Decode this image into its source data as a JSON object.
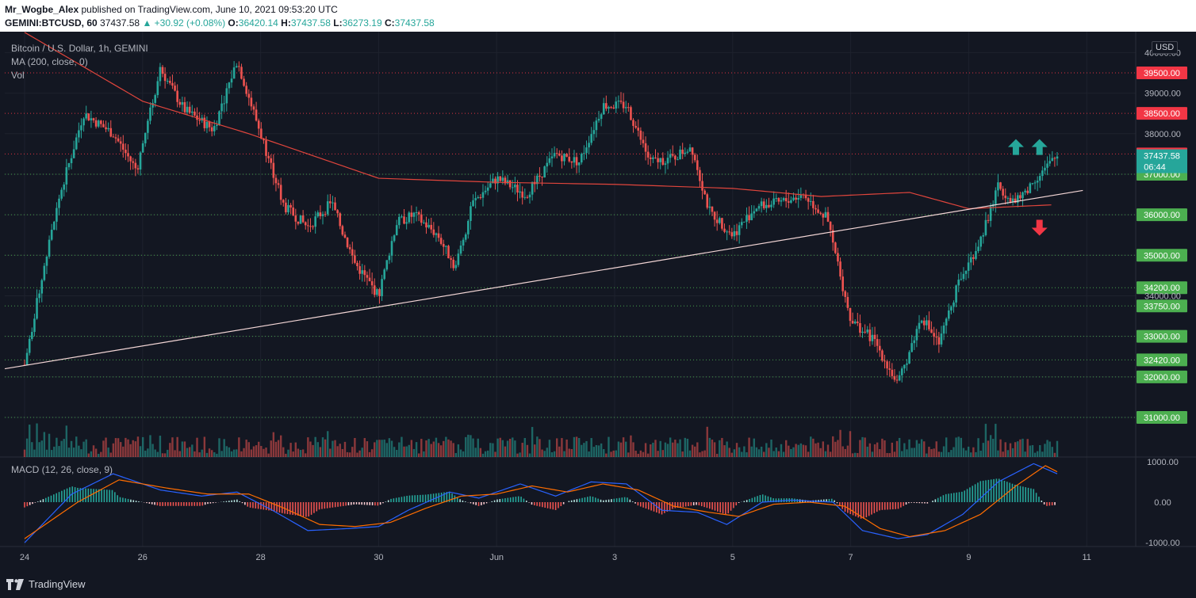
{
  "header": {
    "author": "Mr_Wogbe_Alex",
    "published_text": "published on TradingView.com, June 10, 2021 09:53:20 UTC",
    "symbol": "GEMINI:BTCUSD, 60",
    "price": "37437.58",
    "change": "+30.92 (+0.08%)",
    "o_label": "O:",
    "o": "36420.14",
    "h_label": "H:",
    "h": "37437.58",
    "l_label": "L:",
    "l": "36273.19",
    "c_label": "C:",
    "c": "37437.58"
  },
  "legend": {
    "title": "Bitcoin / U.S. Dollar, 1h, GEMINI",
    "ma": "MA (200, close, 0)",
    "vol": "Vol",
    "macd": "MACD (12, 26, close, 9)"
  },
  "currency": "USD",
  "footer": {
    "brand": "TradingView"
  },
  "colors": {
    "up": "#26a69a",
    "down": "#ef5350",
    "ma": "#e0453c",
    "trend": "#f3d6d6",
    "red_label": "#f23645",
    "green_label": "#4caf50",
    "macd": "#2962ff",
    "signal": "#ff6d00"
  },
  "chart_data": {
    "type": "candlestick",
    "x_ticks": [
      "24",
      "26",
      "28",
      "30",
      "Jun",
      "3",
      "5",
      "7",
      "9",
      "11"
    ],
    "price_levels": [
      {
        "value": "39500.00",
        "kind": "resistance"
      },
      {
        "value": "38500.00",
        "kind": "resistance"
      },
      {
        "value": "37500.00",
        "kind": "resistance"
      },
      {
        "value": "37000.00",
        "kind": "support"
      },
      {
        "value": "36000.00",
        "kind": "support"
      },
      {
        "value": "35000.00",
        "kind": "support"
      },
      {
        "value": "34200.00",
        "kind": "support"
      },
      {
        "value": "33750.00",
        "kind": "support"
      },
      {
        "value": "33000.00",
        "kind": "support"
      },
      {
        "value": "32420.00",
        "kind": "support"
      },
      {
        "value": "32000.00",
        "kind": "support"
      },
      {
        "value": "31000.00",
        "kind": "support"
      }
    ],
    "axis_labels": [
      "40000.00",
      "39000.00",
      "38000.00",
      "34000.00"
    ],
    "current_price": {
      "value": "37437.58",
      "countdown": "06:44"
    },
    "ylim": [
      30000,
      40500
    ],
    "close_path": [
      [
        "24",
        32300
      ],
      [
        "24.3",
        34500
      ],
      [
        "24.6",
        36500
      ],
      [
        "25",
        38500
      ],
      [
        "25.5",
        38000
      ],
      [
        "25.9",
        37100
      ],
      [
        "26.3",
        39600
      ],
      [
        "26.7",
        38600
      ],
      [
        "27.2",
        38100
      ],
      [
        "27.6",
        39800
      ],
      [
        "28",
        38000
      ],
      [
        "28.4",
        36200
      ],
      [
        "28.8",
        35700
      ],
      [
        "29.2",
        36300
      ],
      [
        "29.6",
        34800
      ],
      [
        "30",
        34000
      ],
      [
        "30.3",
        35800
      ],
      [
        "30.6",
        36000
      ],
      [
        "31",
        35500
      ],
      [
        "31.3",
        34700
      ],
      [
        "31.6",
        36300
      ],
      [
        "32",
        36900
      ],
      [
        "32.5",
        36500
      ],
      [
        "33",
        37500
      ],
      [
        "33.4",
        37300
      ],
      [
        "33.8",
        38700
      ],
      [
        "34.2",
        38700
      ],
      [
        "34.6",
        37300
      ],
      [
        "35",
        37400
      ],
      [
        "35.3",
        37700
      ],
      [
        "35.6",
        36100
      ],
      [
        "36",
        35500
      ],
      [
        "36.4",
        36200
      ],
      [
        "36.8",
        36300
      ],
      [
        "37.2",
        36500
      ],
      [
        "37.6",
        35900
      ],
      [
        "38",
        33400
      ],
      [
        "38.4",
        32900
      ],
      [
        "38.8",
        31800
      ],
      [
        "39.2",
        33500
      ],
      [
        "39.5",
        32800
      ],
      [
        "39.8",
        34200
      ],
      [
        "40.2",
        35400
      ],
      [
        "40.5",
        36700
      ],
      [
        "40.8",
        36300
      ],
      [
        "41.2",
        37000
      ],
      [
        "41.5",
        37437.58
      ]
    ],
    "ma200": [
      [
        "24",
        40500
      ],
      [
        "26",
        38800
      ],
      [
        "27.8",
        38000
      ],
      [
        "30",
        36900
      ],
      [
        "32",
        36800
      ],
      [
        "34",
        36750
      ],
      [
        "36",
        36650
      ],
      [
        "37.5",
        36450
      ],
      [
        "39",
        36550
      ],
      [
        "40",
        36150
      ],
      [
        "41.5",
        36250
      ]
    ],
    "trendline": {
      "from": [
        "24",
        32200
      ],
      "to": [
        "41.8",
        36600
      ]
    },
    "macd": {
      "ylim": [
        -1050,
        1100
      ],
      "y_ticks": [
        "1000.00",
        "0.00",
        "-1000.00"
      ],
      "macd_line": [
        [
          "24",
          -1000
        ],
        [
          "24.8",
          200
        ],
        [
          "25.5",
          700
        ],
        [
          "26.3",
          300
        ],
        [
          "27",
          150
        ],
        [
          "27.6",
          250
        ],
        [
          "28.2",
          -200
        ],
        [
          "28.8",
          -700
        ],
        [
          "29.5",
          -650
        ],
        [
          "30",
          -600
        ],
        [
          "30.5",
          -200
        ],
        [
          "31.2",
          250
        ],
        [
          "31.7",
          100
        ],
        [
          "32.4",
          450
        ],
        [
          "33",
          150
        ],
        [
          "33.6",
          500
        ],
        [
          "34.2",
          450
        ],
        [
          "34.8",
          -200
        ],
        [
          "35.4",
          -250
        ],
        [
          "35.9",
          -550
        ],
        [
          "36.5",
          0
        ],
        [
          "37",
          50
        ],
        [
          "37.7",
          0
        ],
        [
          "38.2",
          -700
        ],
        [
          "38.8",
          -900
        ],
        [
          "39.3",
          -800
        ],
        [
          "39.9",
          -300
        ],
        [
          "40.5",
          500
        ],
        [
          "41.1",
          950
        ],
        [
          "41.5",
          700
        ]
      ],
      "signal_line": [
        [
          "24",
          -900
        ],
        [
          "24.9",
          0
        ],
        [
          "25.6",
          550
        ],
        [
          "26.4",
          350
        ],
        [
          "27.1",
          200
        ],
        [
          "27.8",
          200
        ],
        [
          "28.4",
          -150
        ],
        [
          "29",
          -550
        ],
        [
          "29.6",
          -600
        ],
        [
          "30.2",
          -500
        ],
        [
          "30.8",
          -150
        ],
        [
          "31.4",
          150
        ],
        [
          "32",
          200
        ],
        [
          "32.6",
          400
        ],
        [
          "33.2",
          250
        ],
        [
          "33.8",
          450
        ],
        [
          "34.4",
          300
        ],
        [
          "35",
          -100
        ],
        [
          "35.6",
          -250
        ],
        [
          "36.1",
          -350
        ],
        [
          "36.7",
          -50
        ],
        [
          "37.3",
          0
        ],
        [
          "37.9",
          -100
        ],
        [
          "38.5",
          -650
        ],
        [
          "39",
          -850
        ],
        [
          "39.6",
          -700
        ],
        [
          "40.2",
          -300
        ],
        [
          "40.8",
          400
        ],
        [
          "41.3",
          900
        ],
        [
          "41.5",
          750
        ]
      ]
    },
    "arrows": [
      {
        "dir": "up",
        "day": "40.8",
        "price": 37650
      },
      {
        "dir": "up",
        "day": "41.2",
        "price": 37650
      },
      {
        "dir": "down",
        "day": "41.2",
        "price": 35700
      }
    ]
  }
}
